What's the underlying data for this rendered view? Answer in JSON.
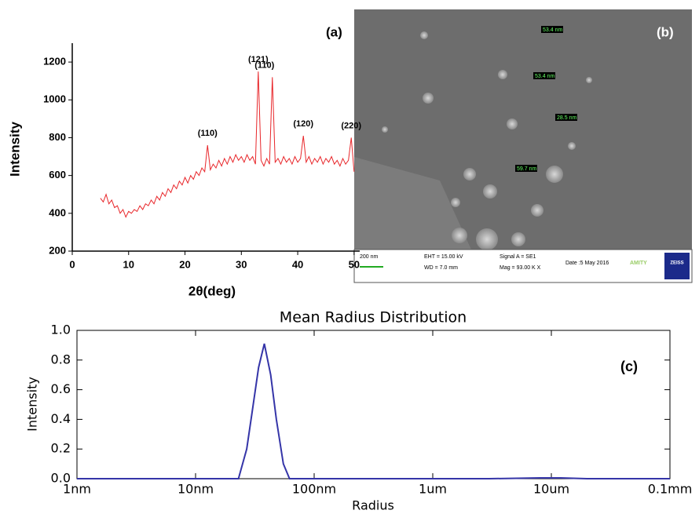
{
  "chart_data": [
    {
      "type": "line",
      "panel_label": "(a)",
      "xlabel": "2θ(deg)",
      "ylabel": "Intensity",
      "color": "#e8262a",
      "x": [
        5,
        5.5,
        6,
        6.5,
        7,
        7.5,
        8,
        8.5,
        9,
        9.5,
        10,
        10.5,
        11,
        11.5,
        12,
        12.5,
        13,
        13.5,
        14,
        14.5,
        15,
        15.5,
        16,
        16.5,
        17,
        17.5,
        18,
        18.5,
        19,
        19.5,
        20,
        20.5,
        21,
        21.5,
        22,
        22.5,
        23,
        23.5,
        24,
        24.5,
        25,
        25.5,
        26,
        26.5,
        27,
        27.5,
        28,
        28.5,
        29,
        29.5,
        30,
        30.5,
        31,
        31.5,
        32,
        32.5,
        33,
        33.5,
        34,
        34.5,
        35,
        35.5,
        36,
        36.5,
        37,
        37.5,
        38,
        38.5,
        39,
        39.5,
        40,
        40.5,
        41,
        41.5,
        42,
        42.5,
        43,
        43.5,
        44,
        44.5,
        45,
        45.5,
        46,
        46.5,
        47,
        47.5,
        48,
        48.5,
        49,
        49.5,
        50
      ],
      "values": [
        480,
        460,
        500,
        450,
        470,
        430,
        440,
        400,
        420,
        380,
        410,
        400,
        420,
        410,
        440,
        420,
        450,
        440,
        470,
        450,
        490,
        470,
        510,
        490,
        530,
        510,
        550,
        530,
        570,
        550,
        590,
        560,
        600,
        580,
        620,
        600,
        640,
        620,
        760,
        630,
        660,
        640,
        680,
        650,
        690,
        660,
        700,
        670,
        710,
        680,
        700,
        670,
        710,
        680,
        700,
        660,
        1150,
        680,
        650,
        690,
        660,
        1120,
        670,
        690,
        660,
        700,
        670,
        690,
        660,
        700,
        670,
        690,
        810,
        670,
        700,
        660,
        690,
        670,
        700,
        660,
        690,
        670,
        700,
        660,
        680,
        650,
        690,
        660,
        680,
        800,
        620
      ],
      "annotations": [
        {
          "text": "(110)",
          "x": 24,
          "y": 760
        },
        {
          "text": "(121)",
          "x": 33,
          "y": 1150
        },
        {
          "text": "(110)",
          "x": 35.5,
          "y": 1120
        },
        {
          "text": "(120)",
          "x": 41,
          "y": 810
        },
        {
          "text": "(220)",
          "x": 49.5,
          "y": 800
        }
      ],
      "xlim": [
        0,
        51
      ],
      "xticks": [
        0,
        10,
        20,
        30,
        40,
        50
      ],
      "ylim": [
        200,
        1300
      ],
      "yticks": [
        200,
        400,
        600,
        800,
        1000,
        1200
      ]
    },
    {
      "type": "line",
      "title": "Mean Radius Distribution",
      "panel_label": "(c)",
      "xlabel": "Radius",
      "ylabel": "Intensity",
      "color": "#3535a8",
      "xscale": "log",
      "x": [
        1,
        23,
        27,
        30,
        34,
        38,
        43,
        48,
        55,
        62,
        3000,
        8000,
        12000,
        20000,
        100000
      ],
      "values": [
        0,
        0,
        0.2,
        0.45,
        0.75,
        0.91,
        0.7,
        0.4,
        0.1,
        0,
        0,
        0.005,
        0.005,
        0,
        0
      ],
      "xlim": [
        1,
        100000
      ],
      "xticks": [
        {
          "value": 1,
          "label": "1nm"
        },
        {
          "value": 10,
          "label": "10nm"
        },
        {
          "value": 100,
          "label": "100nm"
        },
        {
          "value": 1000,
          "label": "1um"
        },
        {
          "value": 10000,
          "label": "10um"
        },
        {
          "value": 100000,
          "label": "0.1mm"
        }
      ],
      "ylim": [
        0,
        1
      ],
      "yticks": [
        {
          "value": 0,
          "label": "0.0"
        },
        0.2,
        0.4,
        0.6,
        0.8,
        {
          "value": 1,
          "label": "1.0"
        }
      ]
    }
  ],
  "sem_image": {
    "panel_label": "(b)",
    "measurements": [
      "53.4 nm",
      "53.4 nm",
      "28.5 nm",
      "59.7 nm"
    ],
    "scale_bar": "200 nm",
    "eht": "EHT = 15.00 kV",
    "wd": "WD = 7.0 mm",
    "signal": "Signal A = SE1",
    "mag": "Mag = 93.00 K X",
    "date": "Date :5 May 2016",
    "brand": "AMITY",
    "logo": "ZEISS"
  }
}
